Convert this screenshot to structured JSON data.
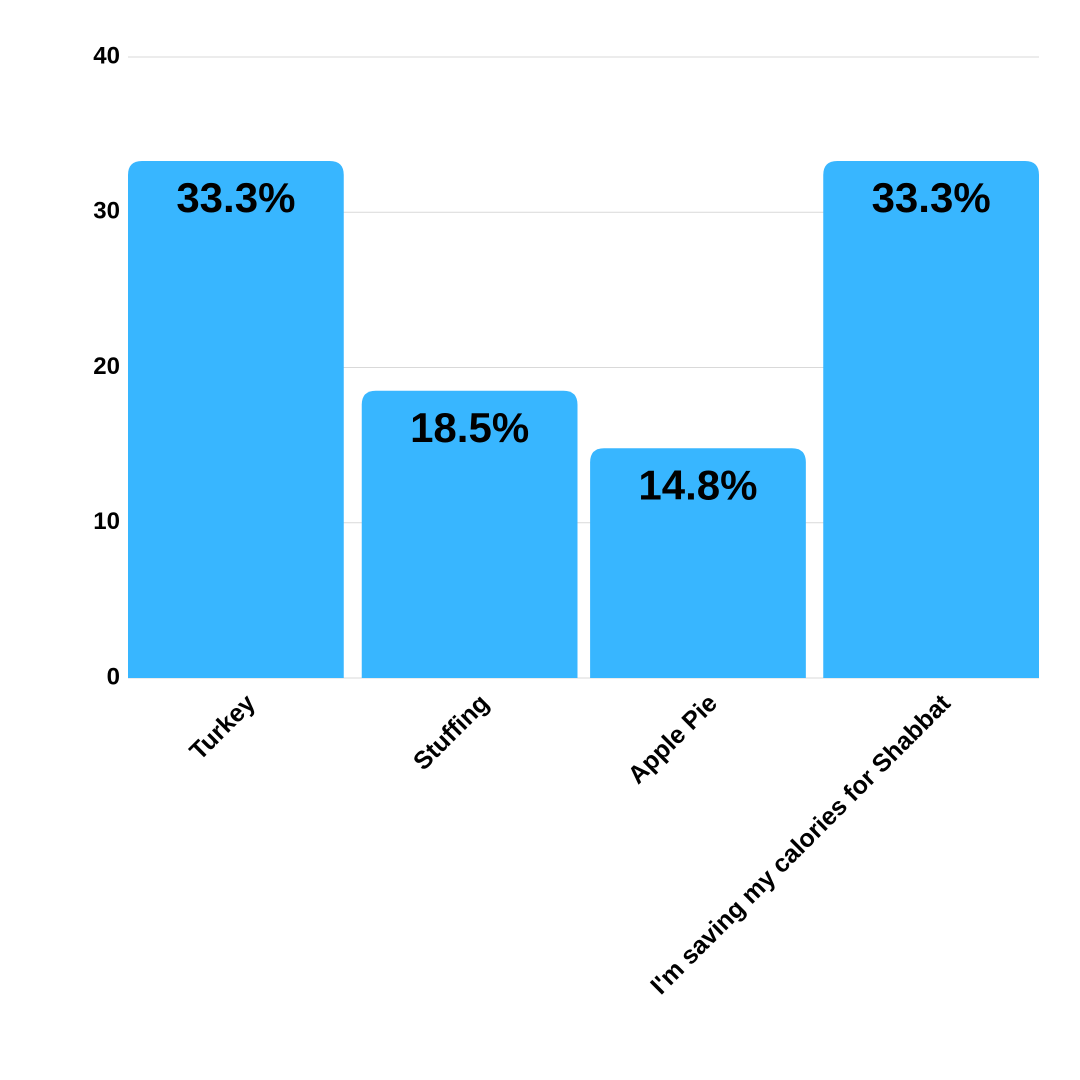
{
  "chart_data": {
    "type": "bar",
    "categories": [
      "Turkey",
      "Stuffing",
      "Apple Pie",
      "I'm saving my calories for Shabbat"
    ],
    "values": [
      33.3,
      18.5,
      14.8,
      33.3
    ],
    "value_labels": [
      "33.3%",
      "18.5%",
      "14.8%",
      "33.3%"
    ],
    "color": "#38b6ff",
    "ylim": [
      0,
      40
    ],
    "yticks": [
      0,
      10,
      20,
      30,
      40
    ],
    "grid": true
  }
}
